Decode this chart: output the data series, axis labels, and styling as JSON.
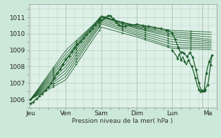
{
  "bg_color": "#cce8d8",
  "plot_bg_color": "#dff0e8",
  "line_color": "#1a5c28",
  "grid_color": "#aacfba",
  "ylabel_ticks": [
    1006,
    1007,
    1008,
    1009,
    1010,
    1011
  ],
  "xlabels": [
    "Jeu",
    "Ven",
    "Sam",
    "Dim",
    "Lun",
    "Ma"
  ],
  "xlabel_text": "Pression niveau de la mer( hPa )",
  "ylim": [
    1005.5,
    1011.8
  ],
  "xlim": [
    -0.05,
    5.25
  ],
  "x_ticks": [
    0.0,
    1.0,
    2.0,
    3.0,
    4.0,
    5.0
  ],
  "marker": "+",
  "marker_size": 3,
  "line_width": 0.7
}
